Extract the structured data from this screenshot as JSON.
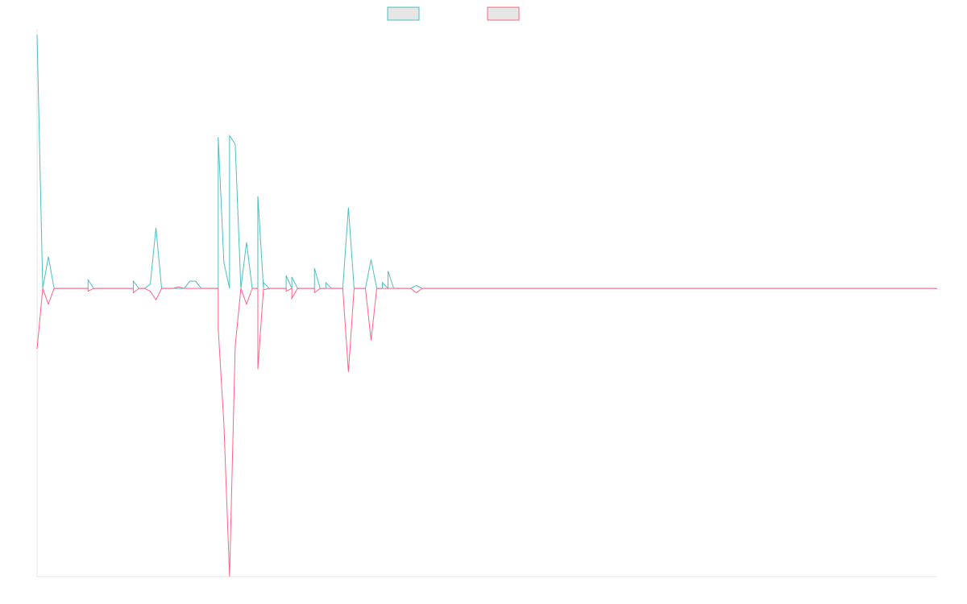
{
  "chart_data": {
    "type": "line",
    "title": "",
    "xlabel": "",
    "ylabel": "",
    "grid": false,
    "legend": "top-center",
    "ylim": [
      -1.0,
      0.9
    ],
    "x_count": 160,
    "series": [
      {
        "color": "#4bc0c0",
        "points": [
          [
            0,
            0.88
          ],
          [
            1,
            0.0
          ],
          [
            2,
            0.11
          ],
          [
            3,
            0.0
          ],
          [
            9,
            0.0
          ],
          [
            9,
            0.03
          ],
          [
            10,
            0.0
          ],
          [
            17,
            0.0
          ],
          [
            17,
            0.025
          ],
          [
            18,
            0.0
          ],
          [
            19,
            0.0
          ],
          [
            20,
            0.015
          ],
          [
            21,
            0.21
          ],
          [
            22,
            0.0
          ],
          [
            26,
            0.0
          ],
          [
            27,
            0.025
          ],
          [
            28,
            0.025
          ],
          [
            29,
            0.0
          ],
          [
            32,
            0.0
          ],
          [
            32,
            0.525
          ],
          [
            33,
            0.09
          ],
          [
            34,
            0.0
          ],
          [
            34,
            0.53
          ],
          [
            35,
            0.5
          ],
          [
            36,
            0.0
          ],
          [
            37,
            0.16
          ],
          [
            38,
            0.0
          ],
          [
            39,
            0.0
          ],
          [
            39,
            0.32
          ],
          [
            40,
            0.0
          ],
          [
            40,
            0.02
          ],
          [
            41,
            0.0
          ],
          [
            44,
            0.0
          ],
          [
            44,
            0.045
          ],
          [
            45,
            0.0
          ],
          [
            45,
            0.04
          ],
          [
            46,
            0.0
          ],
          [
            49,
            0.0
          ],
          [
            49,
            0.07
          ],
          [
            50,
            0.0
          ],
          [
            51,
            0.0
          ],
          [
            51,
            0.02
          ],
          [
            52,
            0.0
          ],
          [
            54,
            0.0
          ],
          [
            55,
            0.28
          ],
          [
            56,
            0.0
          ],
          [
            58,
            0.0
          ],
          [
            59,
            0.1
          ],
          [
            60,
            0.0
          ],
          [
            61,
            0.0
          ],
          [
            61,
            0.02
          ],
          [
            62,
            0.0
          ],
          [
            62,
            0.06
          ],
          [
            63,
            0.0
          ],
          [
            66,
            0.0
          ],
          [
            67,
            0.01
          ],
          [
            68,
            0.0
          ],
          [
            159,
            0.0
          ]
        ]
      },
      {
        "color": "#ff6384",
        "points": [
          [
            0,
            -0.21
          ],
          [
            1,
            0.0
          ],
          [
            2,
            -0.055
          ],
          [
            3,
            0.0
          ],
          [
            9,
            0.0
          ],
          [
            9,
            -0.01
          ],
          [
            10,
            0.0
          ],
          [
            17,
            0.0
          ],
          [
            17,
            -0.015
          ],
          [
            18,
            0.0
          ],
          [
            19,
            0.0
          ],
          [
            20,
            -0.01
          ],
          [
            21,
            -0.04
          ],
          [
            22,
            0.0
          ],
          [
            24,
            0.0
          ],
          [
            25,
            0.005
          ],
          [
            26,
            0.0
          ],
          [
            32,
            0.0
          ],
          [
            32,
            -0.14
          ],
          [
            33,
            -0.47
          ],
          [
            34,
            -1.0
          ],
          [
            35,
            -0.2
          ],
          [
            36,
            0.0
          ],
          [
            37,
            -0.055
          ],
          [
            38,
            0.0
          ],
          [
            39,
            0.0
          ],
          [
            39,
            -0.28
          ],
          [
            40,
            0.0
          ],
          [
            40,
            -0.005
          ],
          [
            41,
            0.0
          ],
          [
            44,
            0.0
          ],
          [
            44,
            -0.01
          ],
          [
            45,
            0.0
          ],
          [
            45,
            -0.035
          ],
          [
            46,
            0.0
          ],
          [
            49,
            0.0
          ],
          [
            49,
            -0.015
          ],
          [
            50,
            0.0
          ],
          [
            54,
            0.0
          ],
          [
            55,
            -0.29
          ],
          [
            56,
            0.0
          ],
          [
            58,
            0.0
          ],
          [
            59,
            -0.18
          ],
          [
            60,
            0.0
          ],
          [
            66,
            0.0
          ],
          [
            67,
            -0.015
          ],
          [
            68,
            0.0
          ],
          [
            159,
            0.0
          ]
        ]
      }
    ]
  }
}
